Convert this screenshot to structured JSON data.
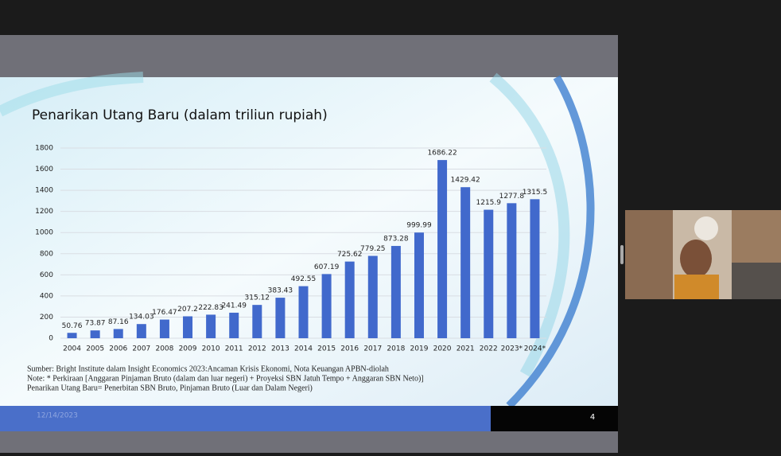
{
  "chart_data": {
    "type": "bar",
    "title": "Penarikan Utang Baru (dalam triliun rupiah)",
    "categories": [
      "2004",
      "2005",
      "2006",
      "2007",
      "2008",
      "2009",
      "2010",
      "2011",
      "2012",
      "2013",
      "2014",
      "2015",
      "2016",
      "2017",
      "2018",
      "2019",
      "2020",
      "2021",
      "2022",
      "2023*",
      "2024*"
    ],
    "values": [
      50.76,
      73.87,
      87.16,
      134.03,
      176.47,
      207.2,
      222.83,
      241.49,
      315.12,
      383.43,
      492.55,
      607.19,
      725.62,
      779.25,
      873.28,
      999.99,
      1686.22,
      1429.42,
      1215.9,
      1277.8,
      1315.5
    ],
    "color": "#4169cc",
    "ylim": [
      0,
      1800
    ],
    "yticks": [
      0,
      200,
      400,
      600,
      800,
      1000,
      1200,
      1400,
      1600,
      1800
    ],
    "grid": true
  },
  "slide": {
    "notes": [
      "Sumber: Bright Institute dalam Insight Economics 2023:Ancaman Krisis Ekonomi, Nota Keuangan APBN-diolah",
      "Note: * Perkiraan [Anggaran Pinjaman Bruto (dalam dan luar negeri) + Proyeksi SBN Jatuh Tempo + Anggaran SBN Neto)]",
      "Penarikan Utang Baru= Penerbitan SBN Bruto, Pinjaman Bruto (Luar dan Dalam Negeri)"
    ],
    "date": "12/14/2023",
    "page_number": "4"
  }
}
